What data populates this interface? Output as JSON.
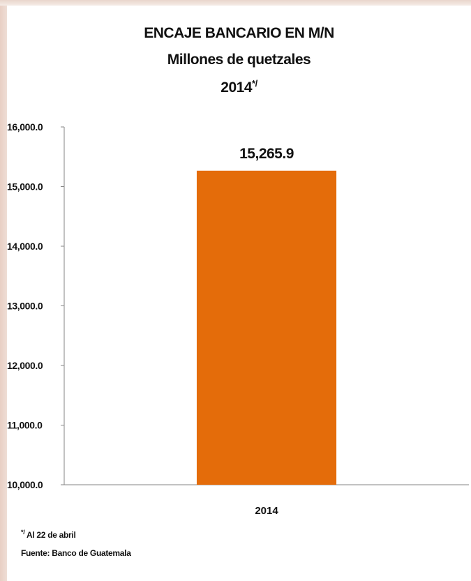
{
  "chart_data": {
    "type": "bar",
    "title": "ENCAJE BANCARIO EN M/N",
    "subtitle": "Millones de quetzales",
    "period_label": "2014",
    "period_marker": "*/",
    "categories": [
      "2014"
    ],
    "values": [
      15265.9
    ],
    "data_labels": [
      "15,265.9"
    ],
    "ylim": [
      10000,
      16000
    ],
    "y_ticks": [
      10000,
      11000,
      12000,
      13000,
      14000,
      15000,
      16000
    ],
    "y_tick_labels": [
      "10,000.0",
      "11,000.0",
      "12,000.0",
      "13,000.0",
      "14,000.0",
      "15,000.0",
      "16,000.0"
    ],
    "grid": false,
    "bar_color": "#e46c0a"
  },
  "footnotes": {
    "marker": "*/",
    "note": " Al 22 de abril",
    "source": "Fuente: Banco de Guatemala"
  }
}
